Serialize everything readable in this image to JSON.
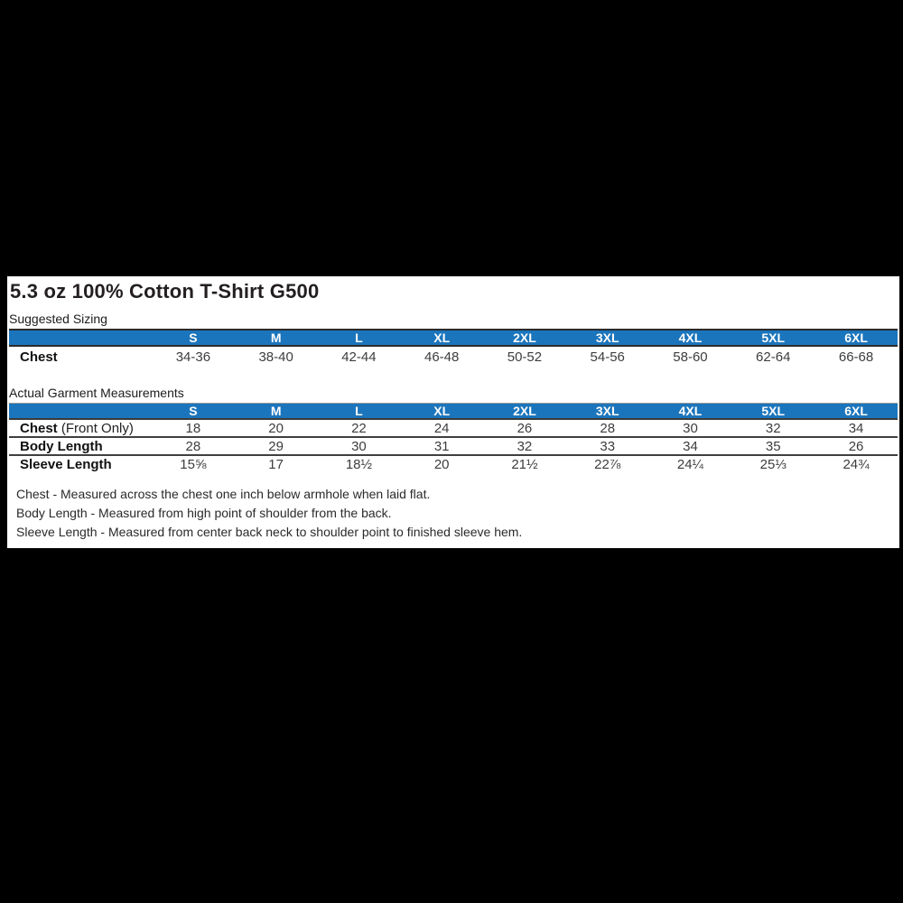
{
  "title": "5.3 oz 100% Cotton T-Shirt G500",
  "chart_data": [
    {
      "type": "table",
      "title": "Suggested Sizing",
      "columns": [
        "",
        "S",
        "M",
        "L",
        "XL",
        "2XL",
        "3XL",
        "4XL",
        "5XL",
        "6XL"
      ],
      "rows": [
        [
          "Chest",
          "34-36",
          "38-40",
          "42-44",
          "46-48",
          "50-52",
          "54-56",
          "58-60",
          "62-64",
          "66-68"
        ]
      ]
    },
    {
      "type": "table",
      "title": "Actual Garment Measurements",
      "columns": [
        "",
        "S",
        "M",
        "L",
        "XL",
        "2XL",
        "3XL",
        "4XL",
        "5XL",
        "6XL"
      ],
      "rows": [
        [
          "Chest (Front Only)",
          "18",
          "20",
          "22",
          "24",
          "26",
          "28",
          "30",
          "32",
          "34"
        ],
        [
          "Body Length",
          "28",
          "29",
          "30",
          "31",
          "32",
          "33",
          "34",
          "35",
          "26"
        ],
        [
          "Sleeve Length",
          "15⅝",
          "17",
          "18½",
          "20",
          "21½",
          "22⅞",
          "24¼",
          "25⅓",
          "24¾"
        ]
      ]
    }
  ],
  "ui": {
    "row_labels": {
      "suggested_chest": "Chest",
      "garment_chest": "Chest",
      "garment_chest_suffix": "(Front Only)",
      "garment_body": "Body Length",
      "garment_sleeve": "Sleeve Length"
    }
  },
  "notes": [
    "Chest - Measured across the chest one inch below armhole when laid flat.",
    "Body Length - Measured from high point of shoulder from the back.",
    "Sleeve Length - Measured from center back neck to shoulder point to finished sleeve hem."
  ],
  "colors": {
    "header_blue": "#1b75bc",
    "header_text": "#ffffff",
    "panel_background": "#ffffff",
    "page_background": "#000000",
    "text": "#231f20"
  }
}
